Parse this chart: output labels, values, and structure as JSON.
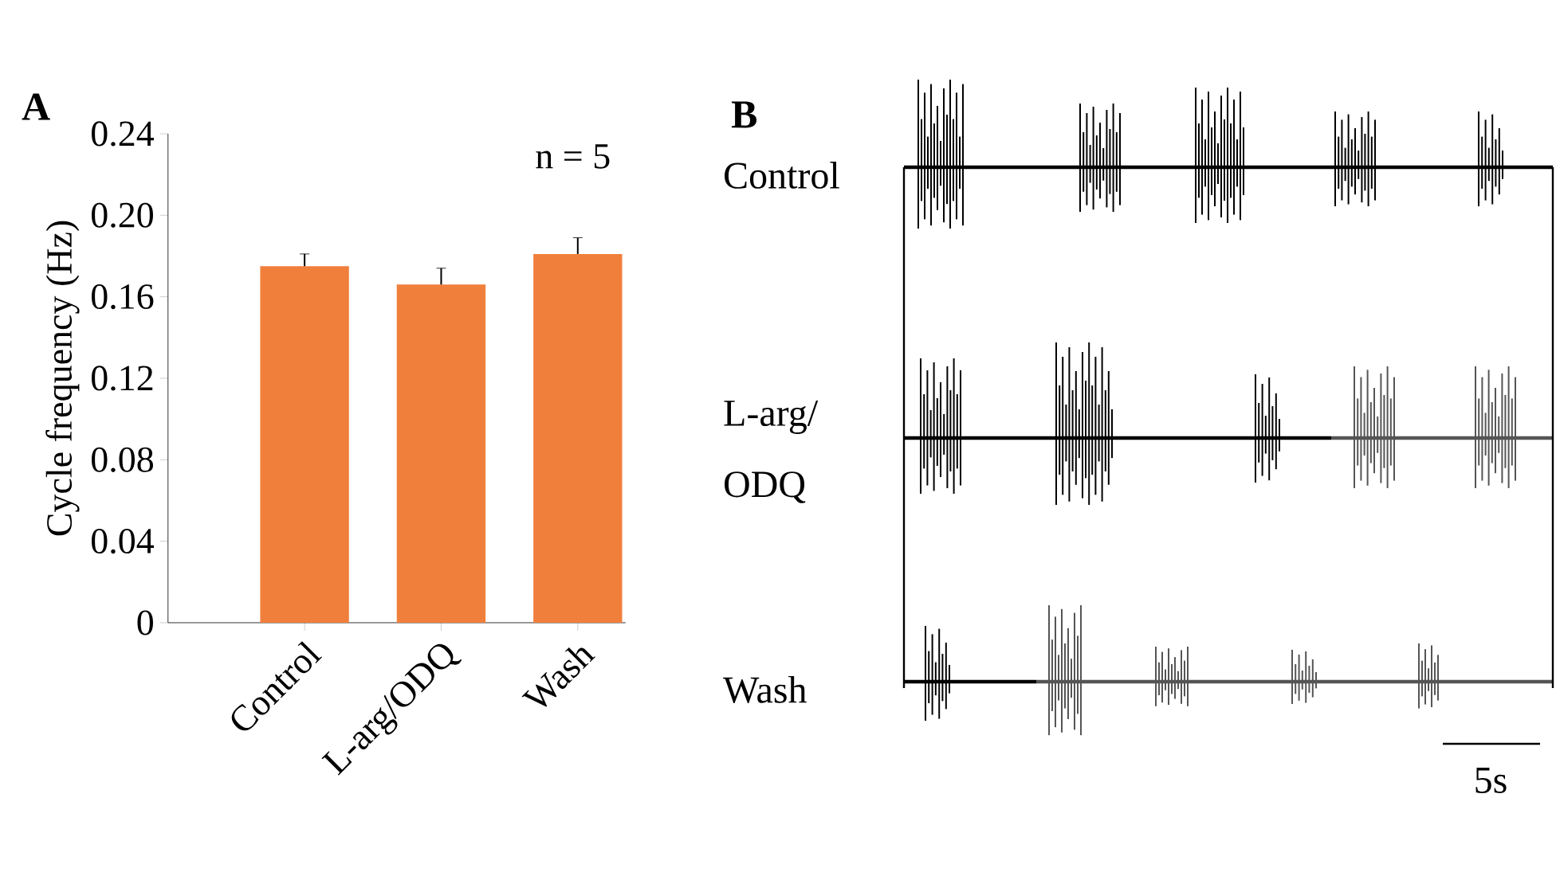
{
  "chart_data": [
    {
      "type": "bar",
      "title": "A",
      "ylabel": "Cycle frequency (Hz)",
      "categories": [
        "Control",
        "L-arg/ODQ",
        "Wash"
      ],
      "values": [
        0.175,
        0.166,
        0.181
      ],
      "errors": [
        0.006,
        0.008,
        0.008
      ],
      "color": "#f07f3c",
      "ylim": [
        0,
        0.24
      ],
      "yticks": [
        0,
        0.04,
        0.08,
        0.12,
        0.16,
        {
          "value": 0.2,
          "label": "0.20"
        },
        0.24
      ],
      "annotations": [
        "n = 5"
      ]
    },
    {
      "type": "other",
      "title": "B",
      "annotations": [
        "Control",
        "L-arg/",
        "ODQ",
        "Wash",
        "5s"
      ]
    }
  ]
}
